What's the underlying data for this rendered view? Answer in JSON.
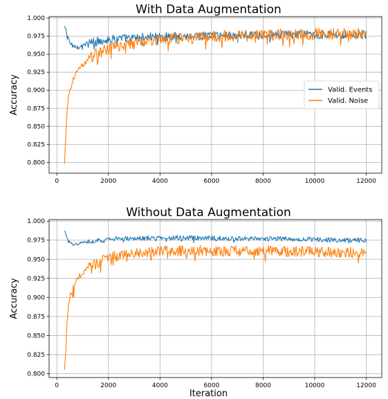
{
  "chart_data": [
    {
      "type": "line",
      "title": "With Data Augmentation",
      "xlabel": "",
      "ylabel": "Accuracy",
      "xlim": [
        -300,
        12600
      ],
      "ylim": [
        0.785,
        1.002
      ],
      "xticks": [
        0,
        2000,
        4000,
        6000,
        8000,
        10000,
        12000
      ],
      "yticks": [
        0.8,
        0.825,
        0.85,
        0.875,
        0.9,
        0.925,
        0.95,
        0.975,
        1.0
      ],
      "xtick_labels": [
        "0",
        "2000",
        "4000",
        "6000",
        "8000",
        "10000",
        "12000"
      ],
      "ytick_labels": [
        "0.800",
        "0.825",
        "0.850",
        "0.875",
        "0.900",
        "0.925",
        "0.950",
        "0.975",
        "1.000"
      ],
      "grid": true,
      "legend": "center-right",
      "series": [
        {
          "name": "Valid. Events",
          "color": "#1f77b4",
          "x": [
            300,
            400,
            500,
            600,
            800,
            1000,
            1200,
            1500,
            2000,
            2500,
            3000,
            3500,
            4000,
            4500,
            5000,
            5500,
            6000,
            6500,
            7000,
            7500,
            8000,
            8500,
            9000,
            9500,
            10000,
            10500,
            11000,
            11500,
            12000
          ],
          "y": [
            0.988,
            0.978,
            0.966,
            0.962,
            0.96,
            0.962,
            0.965,
            0.968,
            0.97,
            0.972,
            0.972,
            0.974,
            0.974,
            0.975,
            0.975,
            0.975,
            0.976,
            0.976,
            0.976,
            0.976,
            0.977,
            0.977,
            0.977,
            0.977,
            0.977,
            0.977,
            0.977,
            0.977,
            0.977
          ]
        },
        {
          "name": "Valid. Noise",
          "color": "#ff7f0e",
          "x": [
            300,
            350,
            400,
            450,
            500,
            600,
            700,
            800,
            1000,
            1200,
            1500,
            2000,
            2500,
            3000,
            3500,
            4000,
            4500,
            5000,
            5500,
            6000,
            6500,
            7000,
            7500,
            8000,
            8500,
            9000,
            9500,
            10000,
            10500,
            11000,
            11500,
            12000
          ],
          "y": [
            0.797,
            0.84,
            0.87,
            0.89,
            0.9,
            0.912,
            0.92,
            0.928,
            0.935,
            0.942,
            0.95,
            0.957,
            0.962,
            0.965,
            0.968,
            0.97,
            0.971,
            0.972,
            0.973,
            0.974,
            0.975,
            0.976,
            0.976,
            0.977,
            0.977,
            0.977,
            0.978,
            0.978,
            0.978,
            0.978,
            0.978,
            0.978
          ]
        }
      ]
    },
    {
      "type": "line",
      "title": "Without Data Augmentation",
      "xlabel": "Iteration",
      "ylabel": "Accuracy",
      "xlim": [
        -300,
        12600
      ],
      "ylim": [
        0.795,
        1.002
      ],
      "xticks": [
        0,
        2000,
        4000,
        6000,
        8000,
        10000,
        12000
      ],
      "yticks": [
        0.8,
        0.825,
        0.85,
        0.875,
        0.9,
        0.925,
        0.95,
        0.975,
        1.0
      ],
      "xtick_labels": [
        "0",
        "2000",
        "4000",
        "6000",
        "8000",
        "10000",
        "12000"
      ],
      "ytick_labels": [
        "0.800",
        "0.825",
        "0.850",
        "0.875",
        "0.900",
        "0.925",
        "0.950",
        "0.975",
        "1.000"
      ],
      "grid": true,
      "series": [
        {
          "name": "Valid. Events",
          "color": "#1f77b4",
          "x": [
            300,
            400,
            500,
            600,
            800,
            1000,
            1500,
            2000,
            3000,
            4000,
            5000,
            6000,
            7000,
            8000,
            9000,
            10000,
            11000,
            12000
          ],
          "y": [
            0.987,
            0.978,
            0.972,
            0.969,
            0.97,
            0.972,
            0.974,
            0.976,
            0.978,
            0.978,
            0.978,
            0.978,
            0.977,
            0.977,
            0.977,
            0.976,
            0.975,
            0.975
          ]
        },
        {
          "name": "Valid. Noise",
          "color": "#ff7f0e",
          "x": [
            300,
            350,
            400,
            450,
            500,
            600,
            700,
            800,
            1000,
            1200,
            1500,
            2000,
            2500,
            3000,
            4000,
            5000,
            6000,
            7000,
            8000,
            9000,
            10000,
            11000,
            12000
          ],
          "y": [
            0.804,
            0.84,
            0.87,
            0.89,
            0.9,
            0.91,
            0.918,
            0.925,
            0.932,
            0.938,
            0.944,
            0.952,
            0.956,
            0.958,
            0.96,
            0.961,
            0.961,
            0.961,
            0.961,
            0.96,
            0.96,
            0.959,
            0.958
          ]
        }
      ]
    }
  ]
}
